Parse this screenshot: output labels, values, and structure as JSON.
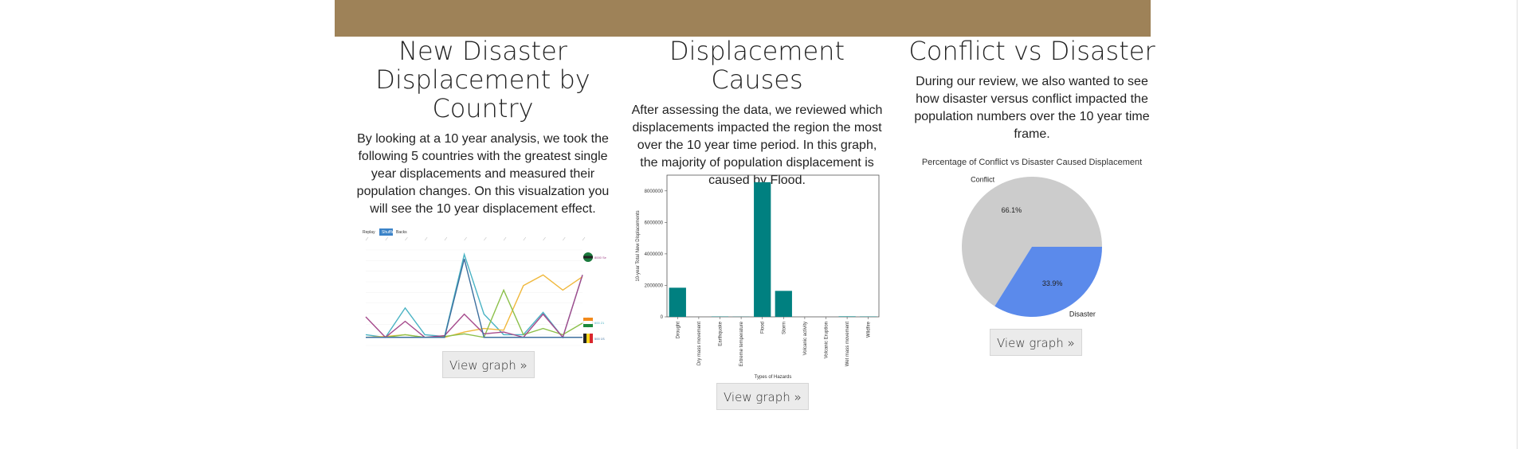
{
  "header": {
    "color": "#9e8258"
  },
  "columns": [
    {
      "title": "New Disaster Displacement by Country",
      "body": "By looking at a 10 year analysis, we took the following 5 countries with the greatest single year displacements and measured their population changes. On this visualzation you will see the 10 year displacement effect.",
      "button": "View graph »",
      "embed": {
        "controls": [
          "Replay",
          "Shuffle",
          "Backs"
        ],
        "end_labels": [
          "8000 Se",
          "600 21",
          "500 1S"
        ],
        "colors": [
          "#4ab3c4",
          "#f0b83c",
          "#8cc04a",
          "#a54a8c",
          "#3d6f9e"
        ]
      }
    },
    {
      "title": "Displacement Causes",
      "body": "After assessing the data, we reviewed which displacements impacted the region the most over the 10 year time period. In this graph, the majority of population displacement is caused by Flood.",
      "button": "View graph »"
    },
    {
      "title": "Conflict vs Disaster",
      "body": "During our review, we also wanted to see how disaster versus conflict impacted the population numbers over the 10 year time frame.",
      "button": "View graph »"
    }
  ],
  "chart_data": [
    {
      "type": "bar",
      "title": "",
      "xlabel": "Types of Hazards",
      "ylabel": "10-year Total New Displacements",
      "categories": [
        "Drought",
        "Dry mass movement",
        "Earthquake",
        "Extreme temperature",
        "Flood",
        "Storm",
        "Volcanic activity",
        "Volcanic Eruption",
        "Wet mass movement",
        "Wildfire"
      ],
      "values": [
        1850000,
        0,
        20000,
        10000,
        8550000,
        1650000,
        0,
        0,
        30000,
        20000
      ],
      "yticks": [
        "0",
        "2000000",
        "4000000",
        "6000000",
        "8000000"
      ],
      "ylim": [
        0,
        9000000
      ],
      "color": "#008080"
    },
    {
      "type": "pie",
      "title": "Percentage of Conflict vs Disaster Caused Displacement",
      "labels": [
        "Conflict",
        "Disaster"
      ],
      "values": [
        66.1,
        33.9
      ],
      "value_labels": [
        "66.1%",
        "33.9%"
      ],
      "colors": [
        "#cccccc",
        "#5b8aeb"
      ]
    }
  ]
}
